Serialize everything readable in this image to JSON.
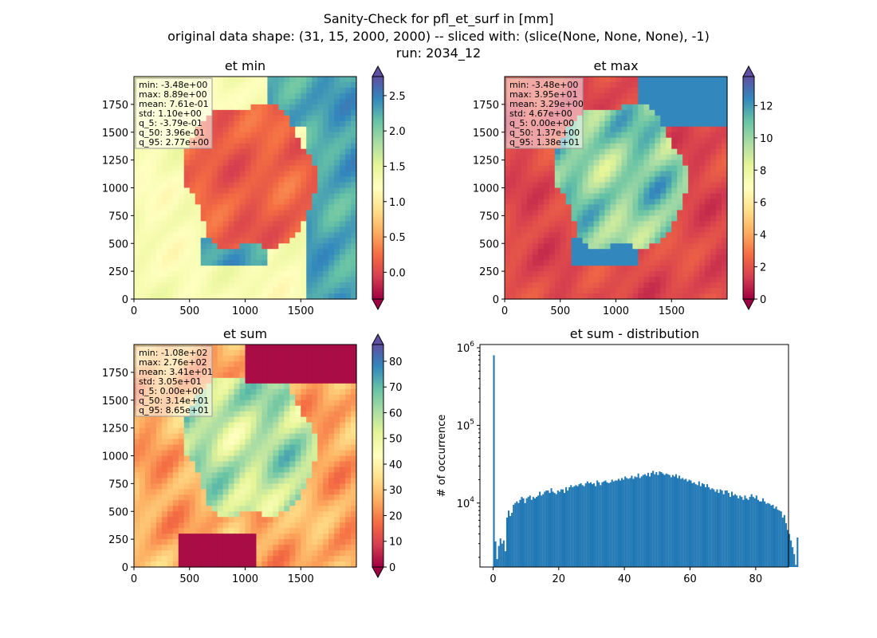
{
  "figure": {
    "title_lines": [
      "Sanity-Check for pfl_et_surf in [mm]",
      "original data shape: (31, 15, 2000, 2000) -- sliced with: (slice(None, None, None), -1)",
      "run: 2034_12"
    ]
  },
  "colormap": {
    "name": "Spectral",
    "stops": [
      "#9e0142",
      "#d53e4f",
      "#f46d43",
      "#fdae61",
      "#fee08b",
      "#ffffbf",
      "#e6f598",
      "#abdda4",
      "#66c2a5",
      "#3288bd",
      "#5e4fa2"
    ]
  },
  "chart_data": [
    {
      "type": "heatmap",
      "title": "et min",
      "xlim": [
        0,
        2000
      ],
      "ylim": [
        0,
        2000
      ],
      "x_ticks": [
        "0",
        "500",
        "1000",
        "1500"
      ],
      "y_ticks": [
        "0",
        "250",
        "500",
        "750",
        "1000",
        "1250",
        "1500",
        "1750"
      ],
      "colorbar": {
        "vmin": -0.38,
        "vmax": 2.77,
        "ticks": [
          "0.0",
          "0.5",
          "1.0",
          "1.5",
          "2.0",
          "2.5"
        ],
        "extend": "both"
      },
      "stats": [
        "min: -3.48e+00",
        "max: 8.89e+00",
        "mean: 7.61e-01",
        "std: 1.10e+00",
        "q_5: -3.79e-01",
        "q_50: 3.96e-01",
        "q_95: 2.77e+00"
      ],
      "legend_loc": "upper-left"
    },
    {
      "type": "heatmap",
      "title": "et max",
      "xlim": [
        0,
        2000
      ],
      "ylim": [
        0,
        2000
      ],
      "x_ticks": [
        "0",
        "500",
        "1000",
        "1500"
      ],
      "y_ticks": [
        "0",
        "250",
        "500",
        "750",
        "1000",
        "1250",
        "1500",
        "1750"
      ],
      "colorbar": {
        "vmin": 0.0,
        "vmax": 13.8,
        "ticks": [
          "0",
          "2",
          "4",
          "6",
          "8",
          "10",
          "12"
        ],
        "extend": "both"
      },
      "stats": [
        "min: -3.48e+00",
        "max: 3.95e+01",
        "mean: 3.29e+00",
        "std: 4.67e+00",
        "q_5: 0.00e+00",
        "q_50: 1.37e+00",
        "q_95: 1.38e+01"
      ],
      "legend_loc": "upper-left"
    },
    {
      "type": "heatmap",
      "title": "et sum",
      "xlim": [
        0,
        2000
      ],
      "ylim": [
        0,
        2000
      ],
      "x_ticks": [
        "0",
        "500",
        "1000",
        "1500"
      ],
      "y_ticks": [
        "0",
        "250",
        "500",
        "750",
        "1000",
        "1250",
        "1500",
        "1750"
      ],
      "colorbar": {
        "vmin": 0.0,
        "vmax": 86.5,
        "ticks": [
          "0",
          "10",
          "20",
          "30",
          "40",
          "50",
          "60",
          "70",
          "80"
        ],
        "extend": "both"
      },
      "stats": [
        "min: -1.08e+02",
        "max: 2.76e+02",
        "mean: 3.41e+01",
        "std: 3.05e+01",
        "q_5: 0.00e+00",
        "q_50: 3.14e+01",
        "q_95: 8.65e+01"
      ],
      "legend_loc": "upper-left"
    },
    {
      "type": "bar",
      "title": "et sum - distribution",
      "xlabel": "",
      "ylabel": "# of occurrence",
      "yscale": "log",
      "xlim": [
        -4,
        90
      ],
      "ylim": [
        1500,
        1100000
      ],
      "x_ticks": [
        "0",
        "20",
        "40",
        "60",
        "80"
      ],
      "y_ticks": [
        "10^4",
        "10^5",
        "10^6"
      ],
      "color": "#1f77b4",
      "bins": {
        "start": 0,
        "width": 0.5
      },
      "values": [
        800000,
        3200,
        1900,
        2800,
        3500,
        3000,
        3300,
        2400,
        6500,
        8000,
        6800,
        7500,
        9500,
        10000,
        10500,
        10000,
        11000,
        12000,
        11500,
        10000,
        11500,
        12000,
        12500,
        11000,
        12000,
        11500,
        12000,
        12500,
        14000,
        12500,
        13000,
        14000,
        14500,
        14500,
        13500,
        15500,
        14000,
        13500,
        13000,
        14500,
        14000,
        15000,
        15000,
        13500,
        16000,
        14500,
        16000,
        17000,
        16000,
        16500,
        17000,
        16500,
        17500,
        18000,
        17000,
        16500,
        18000,
        19000,
        18000,
        18500,
        17500,
        18000,
        16500,
        19500,
        18500,
        17000,
        18500,
        19000,
        19500,
        18500,
        18000,
        18500,
        20000,
        19000,
        19500,
        19500,
        20500,
        19500,
        21000,
        20000,
        22000,
        21000,
        20500,
        21000,
        22500,
        20500,
        22000,
        21500,
        24000,
        21000,
        22000,
        23000,
        23500,
        22500,
        24500,
        22000,
        24500,
        26000,
        23500,
        25000,
        23000,
        25500,
        25000,
        24000,
        23000,
        24000,
        23500,
        23000,
        21500,
        23000,
        22000,
        23500,
        21000,
        22500,
        20500,
        21000,
        20000,
        20500,
        19000,
        20000,
        19500,
        18000,
        18500,
        17500,
        17000,
        19000,
        16500,
        18000,
        17500,
        16000,
        17500,
        16000,
        15000,
        15500,
        15000,
        14000,
        15000,
        13500,
        15000,
        14500,
        13000,
        14500,
        14500,
        13500,
        12000,
        14000,
        12500,
        13000,
        12500,
        11500,
        12500,
        12000,
        11000,
        12500,
        11500,
        11000,
        12000,
        13000,
        12000,
        11500,
        12500,
        11000,
        10500,
        10500,
        11500,
        10500,
        9800,
        10000,
        9800,
        9300,
        9500,
        8500,
        9000,
        8200,
        8000,
        7800,
        6500,
        7000,
        5500,
        4500,
        4000,
        3300,
        2700,
        2200,
        1600,
        3600
      ]
    }
  ]
}
